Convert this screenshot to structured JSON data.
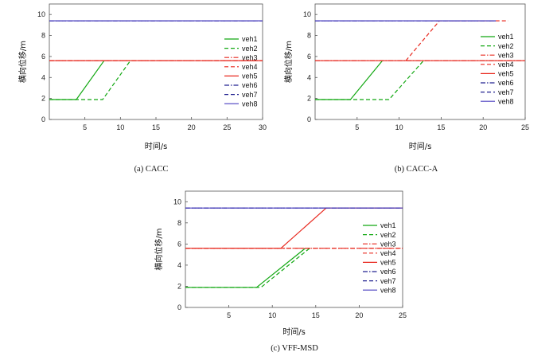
{
  "legend_names": [
    "veh1",
    "veh2",
    "veh3",
    "veh4",
    "veh5",
    "veh6",
    "veh7",
    "veh8"
  ],
  "series_colors": {
    "green": "#12a812",
    "red": "#e8281e",
    "navy": "#202090",
    "blue": "#4a3fc0"
  },
  "chart_data": [
    {
      "type": "line",
      "caption": "(a)  CACC",
      "xlabel": "时间/s",
      "ylabel": "横向位移/m",
      "xlim": [
        0,
        30
      ],
      "ylim": [
        0,
        11
      ],
      "xticks": [
        5,
        10,
        15,
        20,
        25,
        30
      ],
      "yticks": [
        0,
        2,
        4,
        6,
        8,
        10
      ],
      "grid": false,
      "legend_position": "right",
      "series": [
        {
          "name": "veh1",
          "color": "#12a812",
          "dash": "solid",
          "x": [
            0,
            3.8,
            7.7
          ],
          "y": [
            1.9,
            1.9,
            5.6
          ]
        },
        {
          "name": "veh2",
          "color": "#12a812",
          "dash": "dashed",
          "x": [
            0,
            7.5,
            11.4,
            11.6
          ],
          "y": [
            1.9,
            1.9,
            5.6,
            5.6
          ]
        },
        {
          "name": "veh3",
          "color": "#e8281e",
          "dash": "dashdot",
          "x": [
            0,
            30
          ],
          "y": [
            5.6,
            5.6
          ]
        },
        {
          "name": "veh4",
          "color": "#e8281e",
          "dash": "dashed",
          "x": [
            0,
            30
          ],
          "y": [
            5.6,
            5.6
          ]
        },
        {
          "name": "veh5",
          "color": "#e8281e",
          "dash": "solid",
          "x": [
            0,
            30
          ],
          "y": [
            5.6,
            5.6
          ]
        },
        {
          "name": "veh6",
          "color": "#202090",
          "dash": "dashdot",
          "x": [
            0,
            30
          ],
          "y": [
            9.4,
            9.4
          ]
        },
        {
          "name": "veh7",
          "color": "#202090",
          "dash": "dashed",
          "x": [
            0,
            30
          ],
          "y": [
            9.4,
            9.4
          ]
        },
        {
          "name": "veh8",
          "color": "#4a3fc0",
          "dash": "solid",
          "x": [
            0,
            30
          ],
          "y": [
            9.4,
            9.4
          ]
        }
      ]
    },
    {
      "type": "line",
      "caption": "(b)  CACC-A",
      "xlabel": "时间/s",
      "ylabel": "横向位移/m",
      "xlim": [
        0,
        25
      ],
      "ylim": [
        0,
        11
      ],
      "xticks": [
        5,
        10,
        15,
        20,
        25
      ],
      "yticks": [
        0,
        2,
        4,
        6,
        8,
        10
      ],
      "grid": false,
      "legend_position": "right",
      "series": [
        {
          "name": "veh1",
          "color": "#12a812",
          "dash": "solid",
          "x": [
            0,
            4.2,
            8.0
          ],
          "y": [
            1.9,
            1.9,
            5.6
          ]
        },
        {
          "name": "veh2",
          "color": "#12a812",
          "dash": "dashed",
          "x": [
            0,
            8.8,
            12.9,
            13.2
          ],
          "y": [
            1.9,
            1.9,
            5.6,
            5.6
          ]
        },
        {
          "name": "veh3",
          "color": "#e8281e",
          "dash": "dashdot",
          "x": [
            0,
            25
          ],
          "y": [
            5.6,
            5.6
          ]
        },
        {
          "name": "veh4",
          "color": "#e8281e",
          "dash": "dashed",
          "x": [
            10.8,
            14.8,
            23.0
          ],
          "y": [
            5.6,
            9.4,
            9.4
          ]
        },
        {
          "name": "veh5",
          "color": "#e8281e",
          "dash": "solid",
          "x": [
            0,
            25
          ],
          "y": [
            5.6,
            5.6
          ]
        },
        {
          "name": "veh6",
          "color": "#202090",
          "dash": "dashdot",
          "x": [
            0,
            21.5
          ],
          "y": [
            9.4,
            9.4
          ]
        },
        {
          "name": "veh7",
          "color": "#202090",
          "dash": "dashed",
          "x": [
            0,
            21.5
          ],
          "y": [
            9.4,
            9.4
          ]
        },
        {
          "name": "veh8",
          "color": "#4a3fc0",
          "dash": "solid",
          "x": [
            0,
            21.5
          ],
          "y": [
            9.4,
            9.4
          ]
        }
      ]
    },
    {
      "type": "line",
      "caption": "(c)  VFF-MSD",
      "xlabel": "时间/s",
      "ylabel": "横向位移/m",
      "xlim": [
        0,
        25
      ],
      "ylim": [
        0,
        11
      ],
      "xticks": [
        5,
        10,
        15,
        20,
        25
      ],
      "yticks": [
        0,
        2,
        4,
        6,
        8,
        10
      ],
      "grid": false,
      "legend_position": "right",
      "series": [
        {
          "name": "veh1",
          "color": "#12a812",
          "dash": "solid",
          "x": [
            0,
            8.2,
            13.8
          ],
          "y": [
            1.9,
            1.9,
            5.6
          ]
        },
        {
          "name": "veh2",
          "color": "#12a812",
          "dash": "dashed",
          "x": [
            0,
            8.7,
            14.3
          ],
          "y": [
            1.9,
            1.9,
            5.6
          ]
        },
        {
          "name": "veh3",
          "color": "#e8281e",
          "dash": "dashdot",
          "x": [
            0,
            25
          ],
          "y": [
            5.6,
            5.6
          ]
        },
        {
          "name": "veh4",
          "color": "#e8281e",
          "dash": "dashed",
          "x": [
            0,
            25
          ],
          "y": [
            5.6,
            5.6
          ]
        },
        {
          "name": "veh5",
          "color": "#e8281e",
          "dash": "solid",
          "x": [
            0,
            11.0,
            16.2,
            25
          ],
          "y": [
            5.6,
            5.6,
            9.4,
            9.4
          ]
        },
        {
          "name": "veh6",
          "color": "#202090",
          "dash": "dashdot",
          "x": [
            0,
            25
          ],
          "y": [
            9.4,
            9.4
          ]
        },
        {
          "name": "veh7",
          "color": "#202090",
          "dash": "dashed",
          "x": [
            0,
            25
          ],
          "y": [
            9.4,
            9.4
          ]
        },
        {
          "name": "veh8",
          "color": "#4a3fc0",
          "dash": "solid",
          "x": [
            0,
            25
          ],
          "y": [
            9.4,
            9.4
          ]
        }
      ]
    }
  ]
}
